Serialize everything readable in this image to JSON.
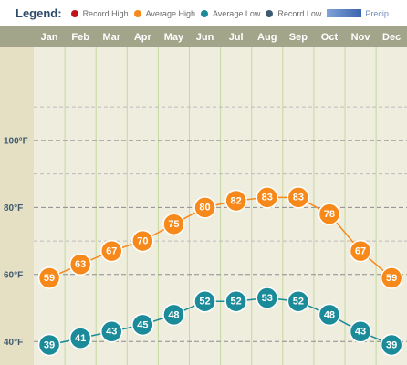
{
  "legend": {
    "title": "Legend:",
    "items": [
      {
        "key": "record_high",
        "label": "Record High",
        "color": "#c0141a"
      },
      {
        "key": "average_high",
        "label": "Average High",
        "color": "#f7891a"
      },
      {
        "key": "average_low",
        "label": "Average Low",
        "color": "#1b8a99"
      },
      {
        "key": "record_low",
        "label": "Record Low",
        "color": "#3e5a70"
      }
    ],
    "precip_label": "Precip"
  },
  "chart_data": {
    "type": "line",
    "categories": [
      "Jan",
      "Feb",
      "Mar",
      "Apr",
      "May",
      "Jun",
      "Jul",
      "Aug",
      "Sep",
      "Oct",
      "Nov",
      "Dec"
    ],
    "series": [
      {
        "name": "Average High",
        "color": "#f7891a",
        "values": [
          59,
          63,
          67,
          70,
          75,
          80,
          82,
          83,
          83,
          78,
          67,
          59
        ]
      },
      {
        "name": "Average Low",
        "color": "#1b8a99",
        "values": [
          39,
          41,
          43,
          45,
          48,
          52,
          52,
          53,
          52,
          48,
          43,
          39
        ]
      }
    ],
    "y_ticks": [
      {
        "value": 100,
        "label": "100°F"
      },
      {
        "value": 80,
        "label": "80°F"
      },
      {
        "value": 60,
        "label": "60°F"
      },
      {
        "value": 40,
        "label": "40°F"
      }
    ],
    "ylim": [
      33,
      128
    ],
    "grid": true,
    "colors": {
      "header_bg": "#a3a58b",
      "header_text": "#ffffff",
      "plot_bg": "#efedde",
      "gutter_bg": "#e5e0c3",
      "major_grid": "#8c8c8c",
      "minor_grid": "#bcbcbc",
      "column_divider": "#c6d7a0",
      "axis_label": "#3e5a70"
    }
  }
}
